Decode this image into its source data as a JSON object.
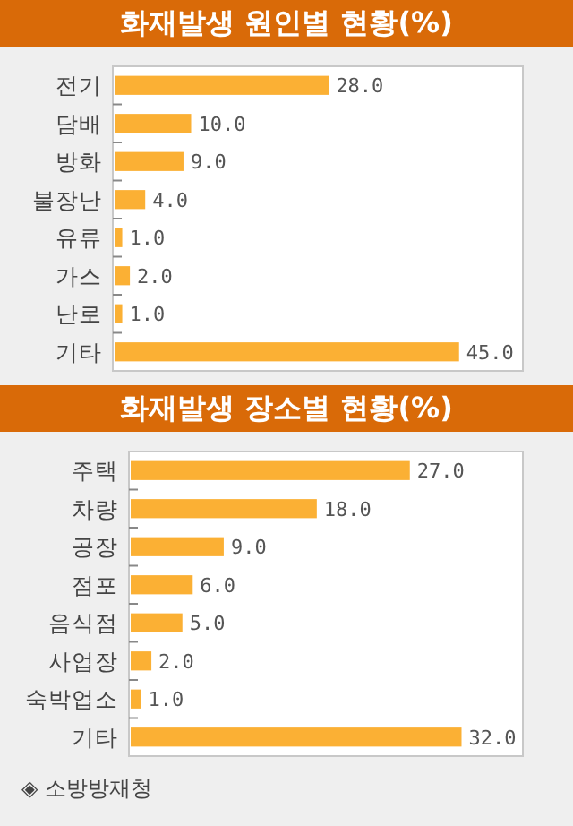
{
  "chart_data": [
    {
      "type": "bar",
      "orientation": "horizontal",
      "title": "화재발생 원인별 현황(%)",
      "categories": [
        "전기",
        "담배",
        "방화",
        "불장난",
        "유류",
        "가스",
        "난로",
        "기타"
      ],
      "values": [
        28.0,
        10.0,
        9.0,
        4.0,
        1.0,
        2.0,
        1.0,
        45.0
      ],
      "value_labels": [
        "28.0",
        "10.0",
        "9.0",
        "4.0",
        "1.0",
        "2.0",
        "1.0",
        "45.0"
      ],
      "color": "#fbb034"
    },
    {
      "type": "bar",
      "orientation": "horizontal",
      "title": "화재발생 장소별 현황(%)",
      "categories": [
        "주택",
        "차량",
        "공장",
        "점포",
        "음식점",
        "사업장",
        "숙박업소",
        "기타"
      ],
      "values": [
        27.0,
        18.0,
        9.0,
        6.0,
        5.0,
        2.0,
        1.0,
        32.0
      ],
      "value_labels": [
        "27.0",
        "18.0",
        "9.0",
        "6.0",
        "5.0",
        "2.0",
        "1.0",
        "32.0"
      ],
      "color": "#fbb034",
      "annotations": [
        "◈ 소방방재청"
      ]
    }
  ]
}
